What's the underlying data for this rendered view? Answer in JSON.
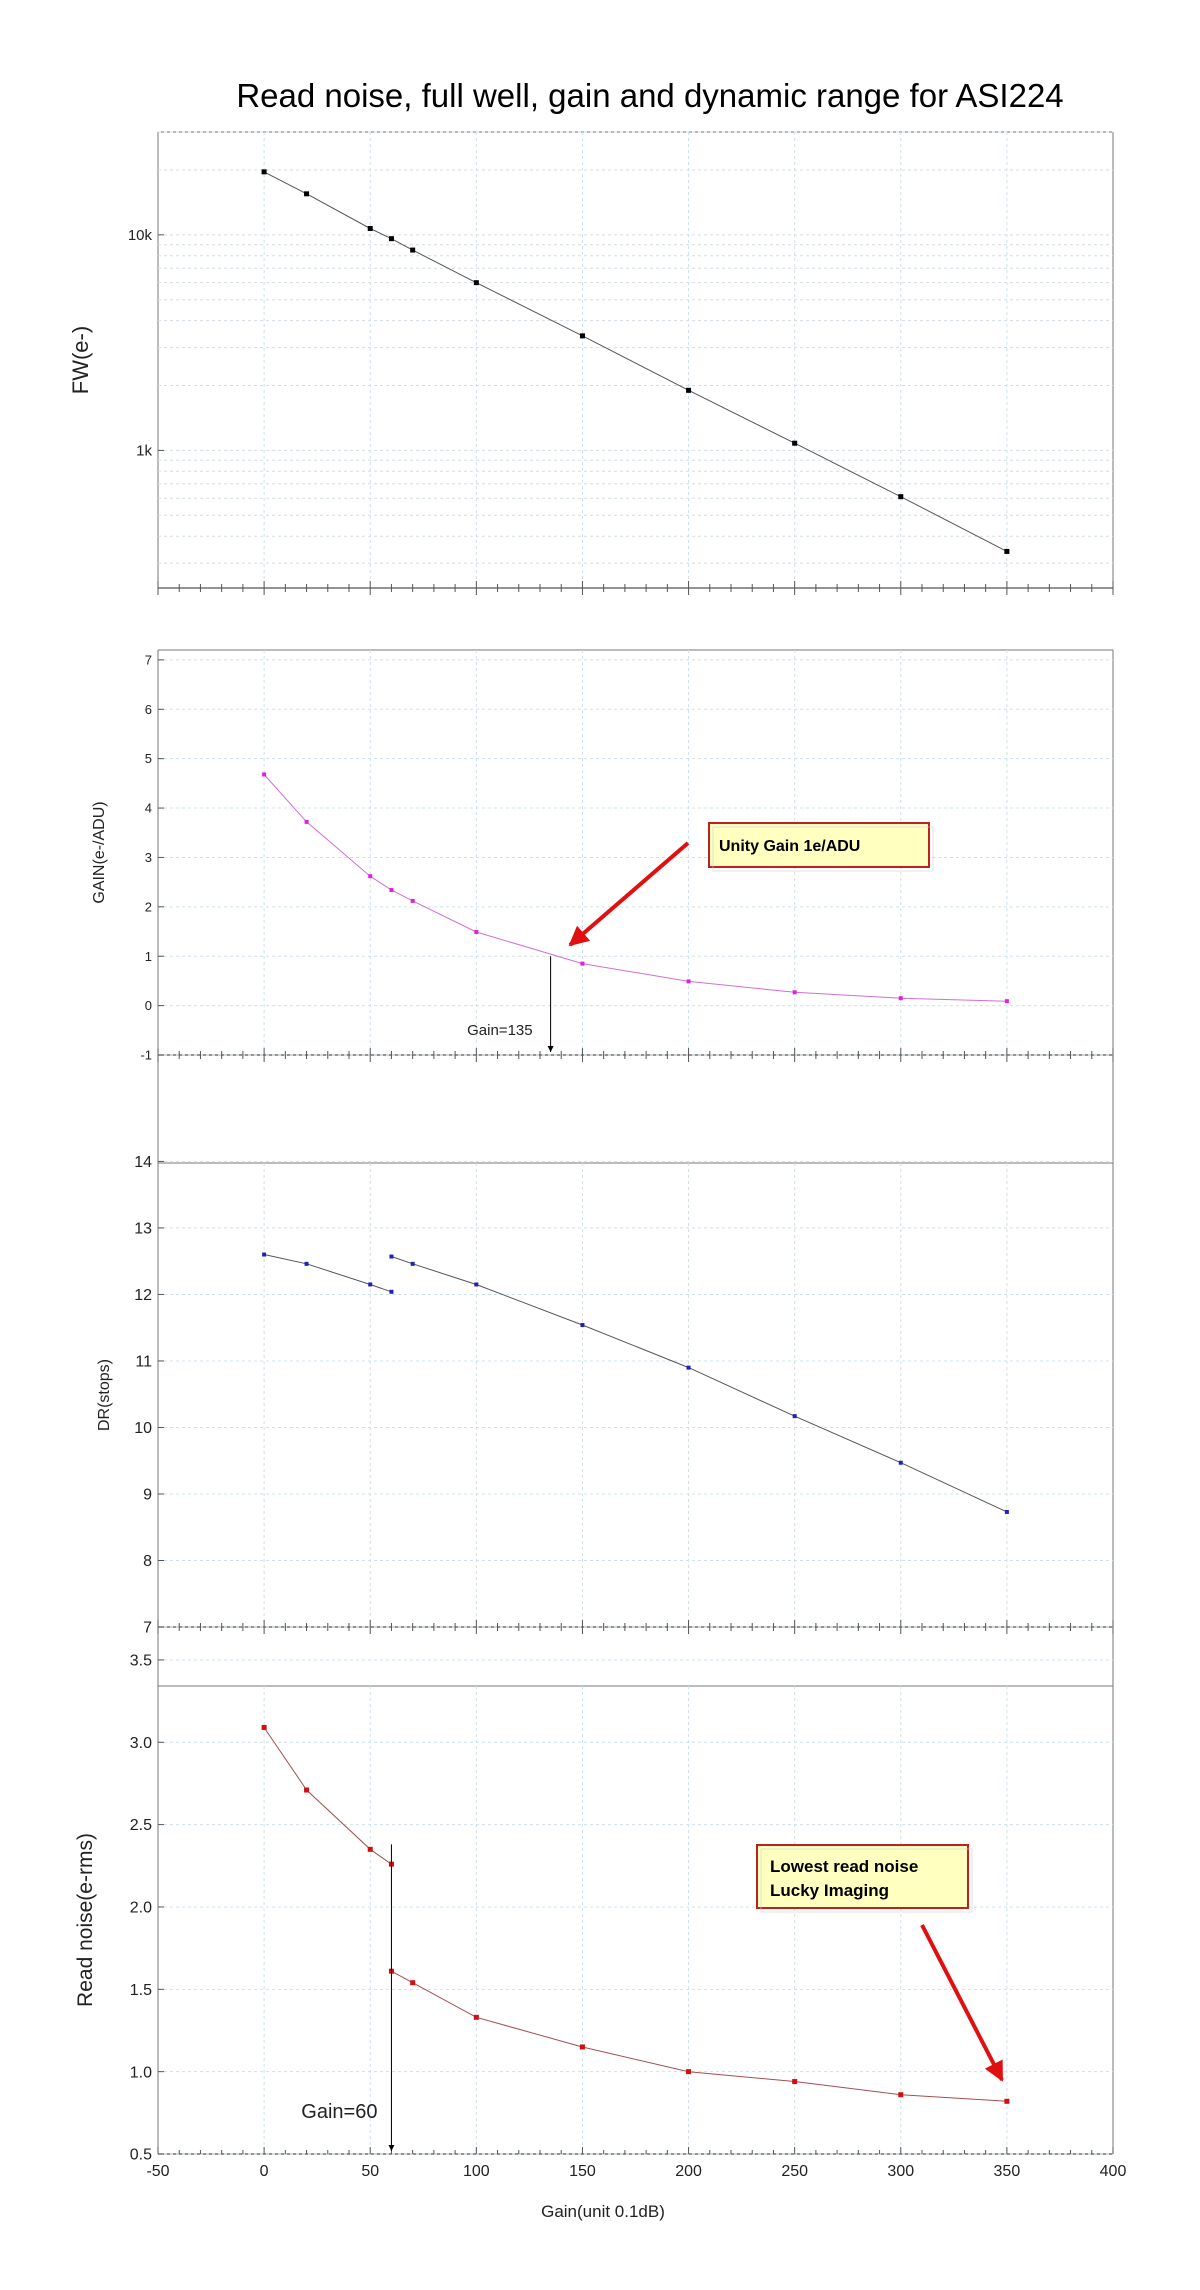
{
  "title": "Read noise, full well, gain and dynamic range for ASI224",
  "xlabel": "Gain(unit 0.1dB)",
  "colors": {
    "fw": "#000000",
    "gain": "#e020e0",
    "dr": "#2020c0",
    "rn": "#d01010",
    "callout_arrow": "#e01010",
    "callout_bg": "#ffffc0",
    "callout_border": "#c02020"
  },
  "chart_data": [
    {
      "type": "line",
      "title": "",
      "xlabel": "",
      "ylabel": "FW(e-)",
      "yscale": "log",
      "xlim": [
        -50,
        400
      ],
      "ylim": [
        230,
        30000
      ],
      "ytick_labels": [
        "10k",
        "1k"
      ],
      "ytick_values": [
        10000,
        1000
      ],
      "grid": true,
      "series": [
        {
          "x": [
            0,
            20,
            50,
            60,
            70,
            100,
            150,
            200,
            250,
            300,
            350
          ],
          "y": [
            19600,
            15500,
            10700,
            9600,
            8500,
            6000,
            3400,
            1900,
            1080,
            610,
            340
          ]
        }
      ]
    },
    {
      "type": "line",
      "title": "",
      "xlabel": "",
      "ylabel": "GAIN(e-/ADU)",
      "xlim": [
        -50,
        400
      ],
      "ylim": [
        -1,
        7.2
      ],
      "ytick_labels": [
        "7",
        "6",
        "5",
        "4",
        "3",
        "2",
        "1",
        "0",
        "-1"
      ],
      "ytick_values": [
        7,
        6,
        5,
        4,
        3,
        2,
        1,
        0,
        -1
      ],
      "grid": true,
      "series": [
        {
          "x": [
            0,
            20,
            50,
            60,
            70,
            100,
            150,
            200,
            250,
            300,
            350
          ],
          "y": [
            4.68,
            3.72,
            2.62,
            2.34,
            2.12,
            1.49,
            0.85,
            0.49,
            0.27,
            0.15,
            0.09
          ]
        }
      ],
      "annotations": [
        {
          "text": "Unity Gain 1e/ADU",
          "type": "callout"
        },
        {
          "text": "Gain=135",
          "x": 135,
          "type": "marker"
        }
      ]
    },
    {
      "type": "line",
      "title": "",
      "xlabel": "",
      "ylabel": "DR(stops)",
      "xlim": [
        -50,
        400
      ],
      "ylim": [
        7,
        15.6
      ],
      "ytick_labels": [
        "14",
        "13",
        "12",
        "11",
        "10",
        "9",
        "8",
        "7"
      ],
      "ytick_values": [
        14,
        13,
        12,
        11,
        10,
        9,
        8,
        7
      ],
      "grid": true,
      "series": [
        {
          "x": [
            0,
            20,
            50,
            60
          ],
          "y": [
            12.6,
            12.46,
            12.15,
            12.04
          ]
        },
        {
          "x": [
            60,
            70,
            100,
            150,
            200,
            250,
            300,
            350
          ],
          "y": [
            12.57,
            12.46,
            12.15,
            11.54,
            10.9,
            10.17,
            9.47,
            8.73
          ]
        }
      ]
    },
    {
      "type": "line",
      "title": "",
      "xlabel": "Gain(unit 0.1dB)",
      "ylabel": "Read noise(e-rms)",
      "xlim": [
        -50,
        400
      ],
      "ylim": [
        0.5,
        3.7
      ],
      "xtick_labels": [
        "-50",
        "0",
        "50",
        "100",
        "150",
        "200",
        "250",
        "300",
        "350",
        "400"
      ],
      "xtick_values": [
        -50,
        0,
        50,
        100,
        150,
        200,
        250,
        300,
        350,
        400
      ],
      "ytick_labels": [
        "3.5",
        "3.0",
        "2.5",
        "2.0",
        "1.5",
        "1.0",
        "0.5"
      ],
      "ytick_values": [
        3.5,
        3.0,
        2.5,
        2.0,
        1.5,
        1.0,
        0.5
      ],
      "grid": true,
      "series": [
        {
          "x": [
            0,
            20,
            50,
            60
          ],
          "y": [
            3.09,
            2.71,
            2.35,
            2.26
          ]
        },
        {
          "x": [
            60,
            70,
            100,
            150,
            200,
            250,
            300,
            350
          ],
          "y": [
            1.61,
            1.54,
            1.33,
            1.15,
            1.0,
            0.94,
            0.86,
            0.82
          ]
        }
      ],
      "annotations": [
        {
          "text": "Lowest read noise",
          "type": "callout"
        },
        {
          "text": "Lucky Imaging",
          "type": "callout"
        },
        {
          "text": "Gain=60",
          "x": 60,
          "type": "marker"
        }
      ]
    }
  ]
}
